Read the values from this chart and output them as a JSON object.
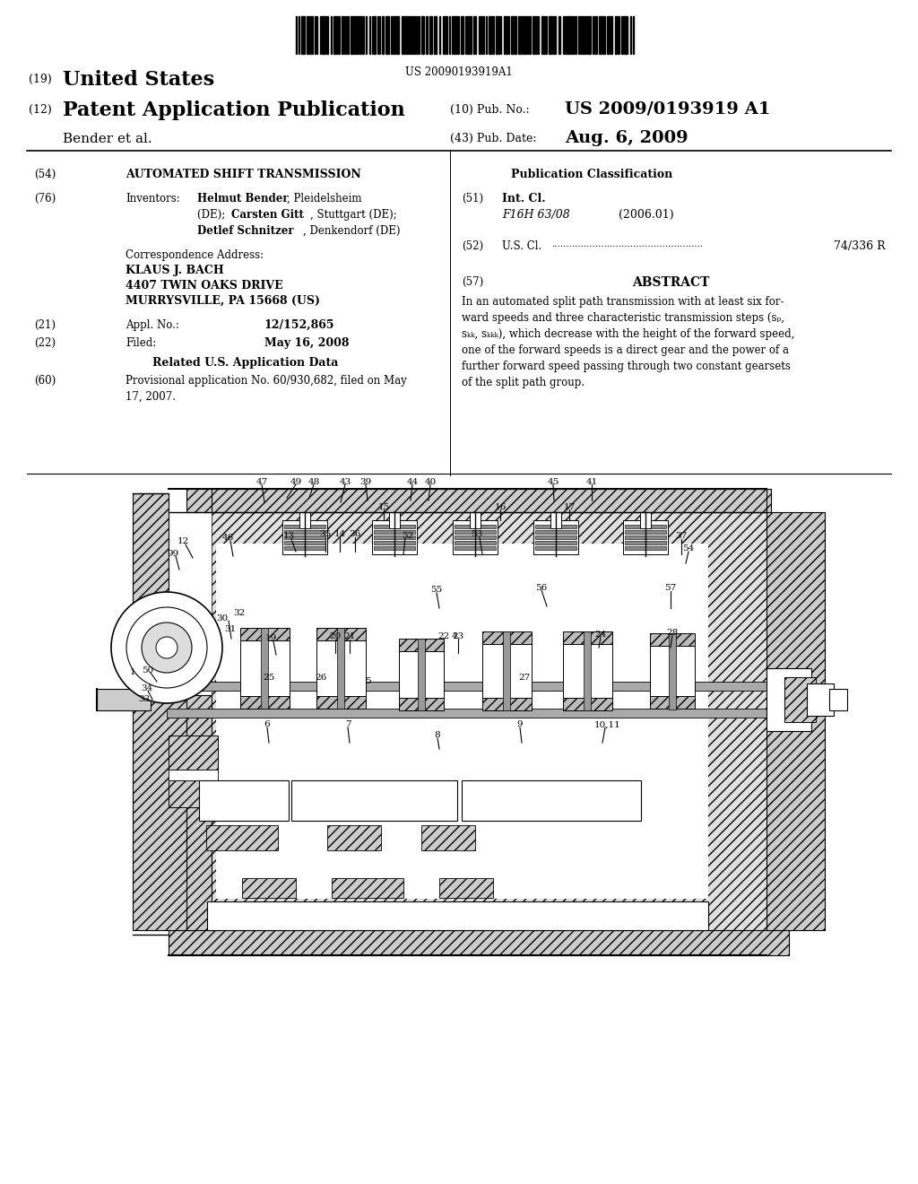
{
  "background_color": "#ffffff",
  "page_width": 10.24,
  "page_height": 13.2,
  "barcode_text": "US 20090193919A1",
  "header_line1_num": "(19)",
  "header_line1_text": "United States",
  "header_line2_num": "(12)",
  "header_line2_text": "Patent Application Publication",
  "header_inventors": "Bender et al.",
  "pub_no_num": "(10)",
  "pub_no_label": "Pub. No.:",
  "pub_no_value": "US 2009/0193919 A1",
  "pub_date_num": "(43)",
  "pub_date_label": "Pub. Date:",
  "pub_date_value": "Aug. 6, 2009",
  "s54_num": "(54)",
  "s54_text": "AUTOMATED SHIFT TRANSMISSION",
  "s76_num": "(76)",
  "s76_label": "Inventors:",
  "inv1_bold": "Helmut Bender",
  "inv1_rest": ", Pleidelsheim",
  "inv2_prefix": "(DE); ",
  "inv2_bold": "Carsten Gitt",
  "inv2_rest": ", Stuttgart (DE);",
  "inv3_bold": "Detlef Schnitzer",
  "inv3_rest": ", Denkendorf (DE)",
  "corr_label": "Correspondence Address:",
  "corr_name": "KLAUS J. BACH",
  "corr_addr1": "4407 TWIN OAKS DRIVE",
  "corr_addr2": "MURRYSVILLE, PA 15668 (US)",
  "s21_num": "(21)",
  "s21_label": "Appl. No.:",
  "s21_value": "12/152,865",
  "s22_num": "(22)",
  "s22_label": "Filed:",
  "s22_value": "May 16, 2008",
  "related_header": "Related U.S. Application Data",
  "s60_num": "(60)",
  "s60_text": "Provisional application No. 60/930,682, filed on May\n17, 2007.",
  "pub_class_header": "Publication Classification",
  "s51_num": "(51)",
  "s51_label": "Int. Cl.",
  "s51_class": "F16H 63/08",
  "s51_date": "(2006.01)",
  "s52_num": "(52)",
  "s52_label": "U.S. Cl.",
  "s52_value": "74/336 R",
  "s57_num": "(57)",
  "abstract_header": "ABSTRACT",
  "abstract_text": "In an automated split path transmission with at least six for-\nward speeds and three characteristic transmission steps (sₚ,\nsₖₖ, sₖₖₖ), which decrease with the height of the forward speed,\none of the forward speeds is a direct gear and the power of a\nfurther forward speed passing through two constant gearsets\nof the split path group."
}
